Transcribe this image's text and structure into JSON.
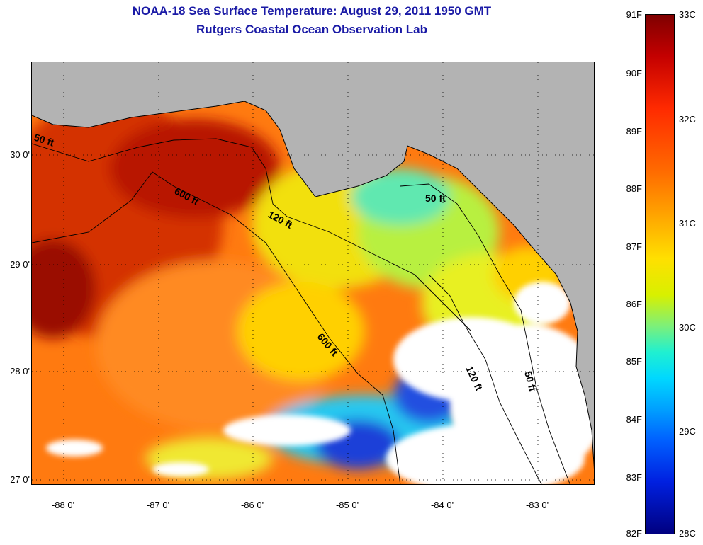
{
  "title": {
    "line1": "NOAA-18 Sea Surface Temperature:  August 29, 2011 1950 GMT",
    "line2": "Rutgers Coastal Ocean Observation Lab"
  },
  "map": {
    "lat_labels": [
      "30 0'",
      "29 0'",
      "28 0'",
      "27 0'"
    ],
    "lon_labels": [
      "-88 0'",
      "-87 0'",
      "-86 0'",
      "-85 0'",
      "-84 0'",
      "-83 0'"
    ],
    "contour_labels": [
      "50 ft",
      "600 ft",
      "120 ft",
      "50 ft",
      "600 ft",
      "120 ft",
      "50 ft"
    ],
    "colors": {
      "land": "#b3b3b3",
      "cloud": "#ffffff",
      "warm": "#d42a00",
      "hot": "#a00000",
      "mid": "#f5d800",
      "cool": "#4de8c8",
      "cold": "#1030d0"
    }
  },
  "colorbar": {
    "fahrenheit": [
      "91F",
      "90F",
      "89F",
      "88F",
      "87F",
      "86F",
      "85F",
      "84F",
      "83F",
      "82F"
    ],
    "celsius": [
      "33C",
      "32C",
      "31C",
      "30C",
      "29C",
      "28C"
    ]
  }
}
